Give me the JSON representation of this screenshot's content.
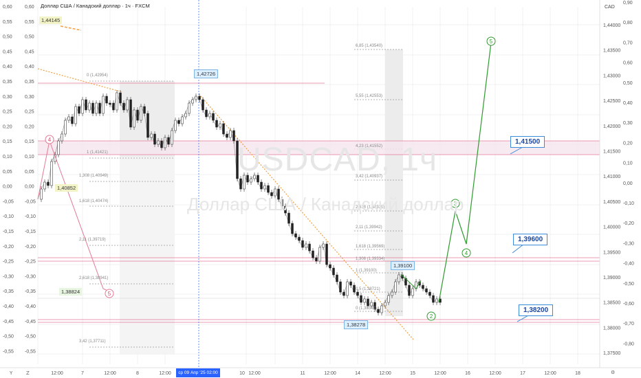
{
  "header": {
    "title": "Доллар США / Канадский доллар · 1ч · FXCM",
    "currency": "CAD"
  },
  "watermark": {
    "symbol": "USDCAD, 1ч",
    "name": "Доллар США / Канадский доллар"
  },
  "left_axis": [
    "0,60",
    "0,55",
    "0,50",
    "0,45",
    "0,40",
    "0,35",
    "0,30",
    "0,25",
    "0,20",
    "0,15",
    "0,10",
    "0,05",
    "0,00",
    "-0,05",
    "-0,10",
    "-0,15",
    "-0,20",
    "-0,25",
    "-0,30",
    "-0,35",
    "-0,40",
    "-0,45",
    "-0,50",
    "-0,55"
  ],
  "left_axis2": [
    "0,60",
    "0,55",
    "0,50",
    "0,45",
    "0,40",
    "0,35",
    "0,30",
    "0,25",
    "0,20",
    "0,15",
    "0,10",
    "0,05",
    "0,00",
    "-0,05",
    "-0,10",
    "-0,15",
    "-0,20",
    "-0,25",
    "-0,30",
    "-0,35",
    "-0,40",
    "-0,45",
    "-0,50",
    "-0,55"
  ],
  "right_axis_price": [
    "1,44000",
    "1,43500",
    "1,43000",
    "1,42500",
    "1,42000",
    "1,41500",
    "1,41000",
    "1,40500",
    "1,40000",
    "1,39500",
    "1,39000",
    "1,38500",
    "1,38000",
    "1,37500"
  ],
  "right_axis_pct": [
    "0,90",
    "0,80",
    "0,70",
    "0,60",
    "0,50",
    "0,40",
    "0,30",
    "0,20",
    "0,10",
    "0,00",
    "-0,10",
    "-0,20",
    "-0,30",
    "-0,40",
    "-0,50",
    "-0,60",
    "-0,70",
    "-0,80"
  ],
  "time_axis": [
    "12:00",
    "7",
    "12:00",
    "8",
    "12:00",
    "10",
    "12:00",
    "11",
    "12:00",
    "14",
    "12:00",
    "15",
    "12:00",
    "16",
    "12:00",
    "17",
    "12:00",
    "18"
  ],
  "time_highlight": "ср 09 Апр '25   02:00",
  "levels": {
    "l1": "1,41500",
    "l2": "1,39600",
    "l3": "1,38200"
  },
  "tags": {
    "t1": "1,44145",
    "t2": "1,40852",
    "t3": "1,38824",
    "t4": "1,42726",
    "t5": "1,39100",
    "t6": "1,38278"
  },
  "fib_left": [
    "0 (1,42954)",
    "1 (1,41421)",
    "1,308 (1,40949)",
    "1,618 (1,40474)",
    "2,11 (1,39719)",
    "2,618 (1,38941)",
    "3,42 (1,37711)"
  ],
  "fib_right": [
    "6,85 (1,43540)",
    "5,55 (1,42553)",
    "4,23 (1,41552)",
    "3,42 (1,40937)",
    "2,618 (1,40328)",
    "2,11 (1,39942)",
    "1,618 (1,39569)",
    "1,308 (1,39334)",
    "1 (1,39100)",
    "0,5 (1,38721)",
    "0 (1,38341)"
  ],
  "waves": {
    "w4": "4",
    "w5a": "5",
    "w2": "2",
    "w3": "3",
    "w4b": "4",
    "w5b": "5"
  },
  "bottom": {
    "left_icon": "Y",
    "left_icon2": "Z",
    "right_icon": "⚙"
  }
}
